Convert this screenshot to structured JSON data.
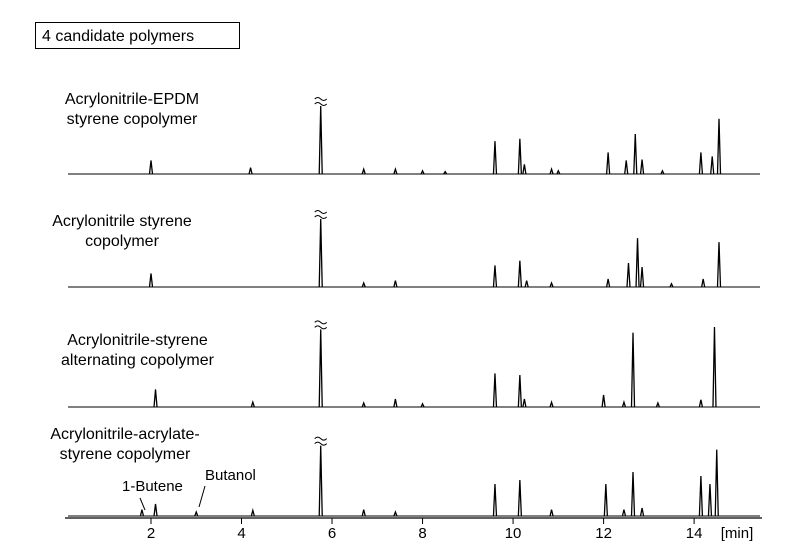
{
  "chart_data": {
    "type": "chromatogram",
    "title": "4 candidate polymers",
    "xlim": [
      0.1,
      15.5
    ],
    "xticks": [
      2,
      4,
      6,
      8,
      10,
      12,
      14
    ],
    "x_unit_label": "[min]",
    "ylim": [
      0,
      110
    ],
    "axis_break_x": 5.75,
    "color": "#000000",
    "series": [
      {
        "name": "Acrylonitrile-EPDM\nstyrene copolymer",
        "x": [
          2.0,
          4.2,
          5.75,
          6.7,
          7.4,
          8.0,
          8.5,
          9.6,
          10.15,
          10.25,
          10.85,
          11.0,
          12.1,
          12.5,
          12.7,
          12.85,
          13.3,
          14.15,
          14.4,
          14.55
        ],
        "values": [
          17,
          8,
          85,
          6,
          6,
          4,
          3,
          41,
          44,
          12,
          6,
          4,
          27,
          17,
          50,
          18,
          4,
          27,
          22,
          69
        ]
      },
      {
        "name": "Acrylonitrile styrene\ncopolymer",
        "x": [
          2.0,
          5.75,
          6.7,
          7.4,
          9.6,
          10.15,
          10.3,
          10.85,
          12.1,
          12.55,
          12.75,
          12.85,
          13.5,
          14.2,
          14.55
        ],
        "values": [
          17,
          85,
          5,
          8,
          27,
          33,
          8,
          5,
          10,
          30,
          61,
          25,
          4,
          10,
          56
        ]
      },
      {
        "name": "Acrylonitrile-styrene\nalternating copolymer",
        "x": [
          2.1,
          4.25,
          5.75,
          6.7,
          7.4,
          8.0,
          9.6,
          10.15,
          10.25,
          10.85,
          12.0,
          12.45,
          12.65,
          13.2,
          14.15,
          14.45
        ],
        "values": [
          22,
          6,
          97,
          5,
          10,
          4,
          42,
          40,
          10,
          6,
          15,
          6,
          93,
          5,
          9,
          100
        ]
      },
      {
        "name": "Acrylonitrile-acrylate-\nstyrene copolymer",
        "x": [
          1.8,
          2.1,
          3.0,
          4.25,
          5.75,
          6.7,
          7.4,
          9.6,
          10.15,
          10.85,
          12.05,
          12.45,
          12.65,
          12.85,
          14.15,
          14.35,
          14.5
        ],
        "values": [
          8,
          15,
          5,
          7,
          88,
          8,
          5,
          40,
          45,
          8,
          40,
          8,
          55,
          10,
          50,
          40,
          83
        ]
      }
    ],
    "annotations": [
      "1-Butene",
      "Butanol"
    ]
  }
}
